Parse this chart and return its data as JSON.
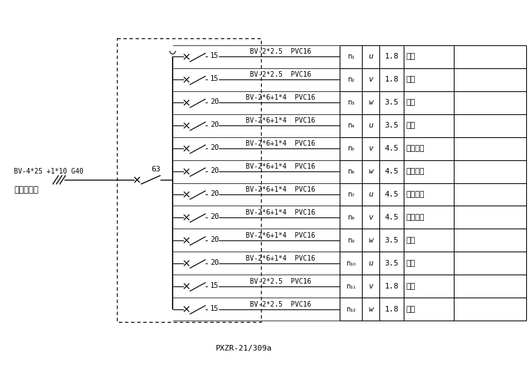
{
  "bg_color": "#ffffff",
  "text_color": "#000000",
  "figsize": [
    7.6,
    5.41
  ],
  "dpi": 100,
  "title_label": "PXZR-21/309a",
  "input_label1": "BV-4*25 +1*10 G40",
  "input_label2": "接市政电源",
  "main_breaker": "63",
  "rows": [
    {
      "breaker": "15",
      "cable": "BV-2*2.5  PVC16",
      "id": "n1",
      "phase": "u",
      "current": "1.8",
      "load": "路灯"
    },
    {
      "breaker": "15",
      "cable": "BV-2*2.5  PVC16",
      "id": "n2",
      "phase": "v",
      "current": "1.8",
      "load": "照明"
    },
    {
      "breaker": "20",
      "cable": "BV-2*6+1*4  PVC16",
      "id": "n3",
      "phase": "w",
      "current": "3.5",
      "load": "插座"
    },
    {
      "breaker": "20",
      "cable": "BV-2*6+1*4  PVC16",
      "id": "n4",
      "phase": "u",
      "current": "3.5",
      "load": "插座"
    },
    {
      "breaker": "20",
      "cable": "BV-2*6+1*4  PVC16",
      "id": "n5",
      "phase": "v",
      "current": "4.5",
      "load": "空调插座"
    },
    {
      "breaker": "20",
      "cable": "BV-2*6+1*4  PVC16",
      "id": "n6",
      "phase": "w",
      "current": "4.5",
      "load": "空调插座"
    },
    {
      "breaker": "20",
      "cable": "BV-2*6+1*4  PVC16",
      "id": "n7",
      "phase": "u",
      "current": "4.5",
      "load": "空调插座"
    },
    {
      "breaker": "20",
      "cable": "BV-2*6+1*4  PVC16",
      "id": "n8",
      "phase": "v",
      "current": "4.5",
      "load": "空调插座"
    },
    {
      "breaker": "20",
      "cable": "BV-2*6+1*4  PVC16",
      "id": "n9",
      "phase": "w",
      "current": "3.5",
      "load": "插座"
    },
    {
      "breaker": "20",
      "cable": "BV-2*6+1*4  PVC16",
      "id": "n10",
      "phase": "u",
      "current": "3.5",
      "load": "插座"
    },
    {
      "breaker": "15",
      "cable": "BV-2*2.5  PVC16",
      "id": "n11",
      "phase": "v",
      "current": "1.8",
      "load": "路灯"
    },
    {
      "breaker": "15",
      "cable": "BV-2*2.5  PVC16",
      "id": "n12",
      "phase": "w",
      "current": "1.8",
      "load": "照明"
    }
  ],
  "row_id_display": [
    "n₁",
    "n₂",
    "n₃",
    "n₄",
    "n₅",
    "n₆",
    "n₇",
    "n₈",
    "n₉",
    "n₁₀",
    "n₁₁",
    "n₁₂"
  ]
}
